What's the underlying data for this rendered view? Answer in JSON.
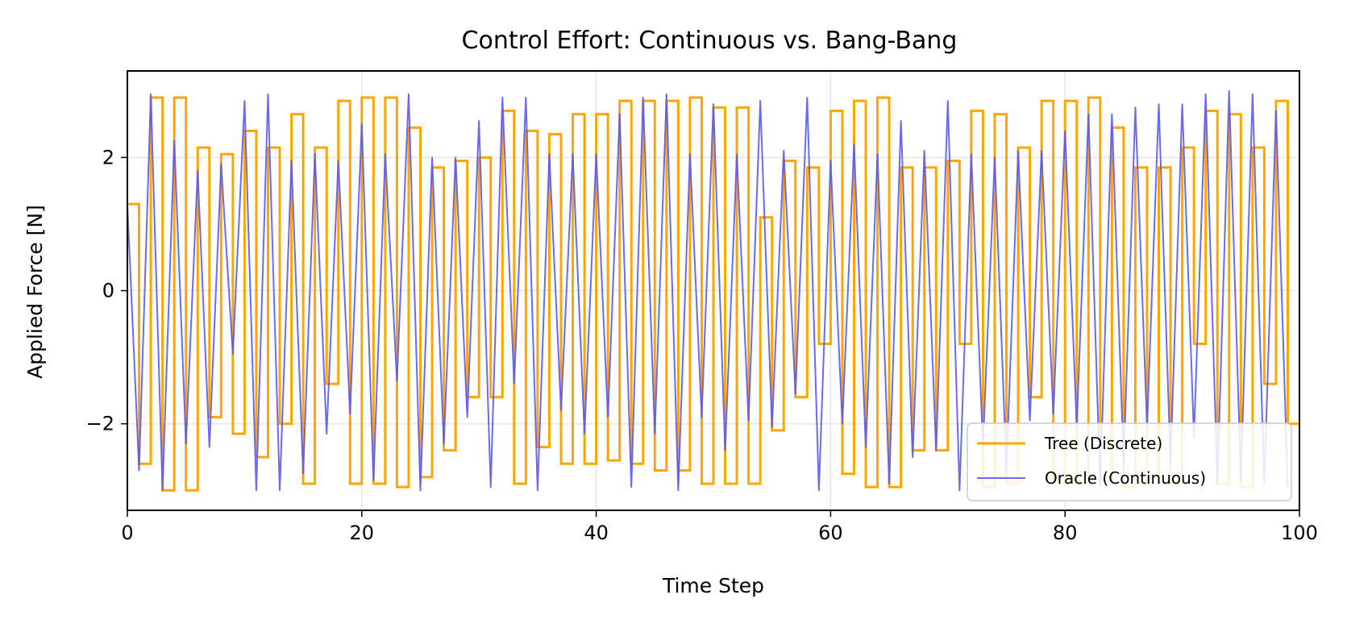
{
  "chart_data": {
    "type": "line",
    "title": "Control Effort: Continuous vs. Bang-Bang",
    "xlabel": "Time Step",
    "ylabel": "Applied Force [N]",
    "xlim": [
      0,
      100
    ],
    "ylim": [
      -3.3,
      3.3
    ],
    "xticks": [
      0,
      20,
      40,
      60,
      80,
      100
    ],
    "yticks": [
      2,
      0,
      -2
    ],
    "ytick_labels": [
      "2",
      "0",
      "−2"
    ],
    "grid": true,
    "legend_placement": "lower-right",
    "series": [
      {
        "name": "Tree (Discrete)",
        "style": "steps",
        "color": "#FFA500",
        "x": [
          0,
          1,
          2,
          3,
          4,
          5,
          6,
          7,
          8,
          9,
          10,
          11,
          12,
          13,
          14,
          15,
          16,
          17,
          18,
          19,
          20,
          21,
          22,
          23,
          24,
          25,
          26,
          27,
          28,
          29,
          30,
          31,
          32,
          33,
          34,
          35,
          36,
          37,
          38,
          39,
          40,
          41,
          42,
          43,
          44,
          45,
          46,
          47,
          48,
          49,
          50,
          51,
          52,
          53,
          54,
          55,
          56,
          57,
          58,
          59,
          60,
          61,
          62,
          63,
          64,
          65,
          66,
          67,
          68,
          69,
          70,
          71,
          72,
          73,
          74,
          75,
          76,
          77,
          78,
          79,
          80,
          81,
          82,
          83,
          84,
          85,
          86,
          87,
          88,
          89,
          90,
          91,
          92,
          93,
          94,
          95,
          96,
          97,
          98,
          99
        ],
        "values": [
          1.3,
          -2.6,
          2.9,
          -3.0,
          2.9,
          -3.0,
          2.15,
          -1.9,
          2.05,
          -2.15,
          2.4,
          -2.5,
          2.15,
          -2.0,
          2.65,
          -2.9,
          2.15,
          -1.4,
          2.85,
          -2.9,
          2.9,
          -2.9,
          2.9,
          -2.95,
          2.45,
          -2.8,
          1.85,
          -2.4,
          1.95,
          -1.6,
          2.0,
          -1.6,
          2.7,
          -2.9,
          2.4,
          -2.35,
          2.35,
          -2.6,
          2.65,
          -2.6,
          2.65,
          -2.55,
          2.85,
          -2.6,
          2.85,
          -2.7,
          2.85,
          -2.7,
          2.9,
          -2.9,
          2.75,
          -2.9,
          2.75,
          -2.9,
          1.1,
          -2.1,
          1.95,
          -1.6,
          1.85,
          -0.8,
          2.7,
          -2.75,
          2.85,
          -2.95,
          2.9,
          -2.95,
          1.85,
          -2.4,
          1.85,
          -2.4,
          1.95,
          -0.8,
          2.7,
          -2.95,
          2.65,
          -2.9,
          2.15,
          -1.6,
          2.85,
          -2.9,
          2.85,
          -2.9,
          2.9,
          -2.85,
          2.45,
          -2.95,
          1.85,
          -2.9,
          1.85,
          -2.9,
          2.15,
          -0.8,
          2.7,
          -2.9,
          2.65,
          -2.95,
          2.15,
          -1.4,
          2.85,
          -2.0
        ]
      },
      {
        "name": "Oracle (Continuous)",
        "style": "line",
        "color": "#5A5AF0",
        "x": [
          0,
          1,
          2,
          3,
          4,
          5,
          6,
          7,
          8,
          9,
          10,
          11,
          12,
          13,
          14,
          15,
          16,
          17,
          18,
          19,
          20,
          21,
          22,
          23,
          24,
          25,
          26,
          27,
          28,
          29,
          30,
          31,
          32,
          33,
          34,
          35,
          36,
          37,
          38,
          39,
          40,
          41,
          42,
          43,
          44,
          45,
          46,
          47,
          48,
          49,
          50,
          51,
          52,
          53,
          54,
          55,
          56,
          57,
          58,
          59,
          60,
          61,
          62,
          63,
          64,
          65,
          66,
          67,
          68,
          69,
          70,
          71,
          72,
          73,
          74,
          75,
          76,
          77,
          78,
          79,
          80,
          81,
          82,
          83,
          84,
          85,
          86,
          87,
          88,
          89,
          90,
          91,
          92,
          93,
          94,
          95,
          96,
          97,
          98,
          99
        ],
        "values": [
          1.3,
          -2.7,
          2.95,
          -3.0,
          2.25,
          -2.3,
          1.8,
          -2.35,
          1.9,
          -0.95,
          2.85,
          -3.0,
          2.95,
          -3.0,
          1.95,
          -2.75,
          2.05,
          -2.15,
          1.95,
          -1.85,
          2.5,
          -2.85,
          2.05,
          -1.35,
          2.95,
          -3.0,
          2.0,
          -2.3,
          2.0,
          -1.9,
          2.55,
          -2.95,
          2.9,
          -1.4,
          2.9,
          -3.0,
          2.05,
          -1.8,
          2.05,
          -2.15,
          2.05,
          -1.9,
          2.65,
          -2.95,
          2.9,
          -2.15,
          2.95,
          -3.0,
          2.05,
          -1.9,
          2.8,
          -2.4,
          2.05,
          -1.95,
          2.85,
          -2.05,
          2.1,
          -1.55,
          2.9,
          -3.0,
          1.95,
          -2.0,
          2.2,
          -2.35,
          2.05,
          -2.9,
          2.55,
          -2.5,
          2.1,
          -2.4,
          2.85,
          -3.0,
          2.05,
          -2.35,
          2.0,
          -2.7,
          2.1,
          -1.95,
          2.1,
          -1.85,
          2.4,
          -2.05,
          2.65,
          -2.95,
          2.65,
          -2.6,
          2.75,
          -2.05,
          2.8,
          -2.6,
          2.8,
          -2.2,
          2.95,
          -2.9,
          3.0,
          -2.85,
          2.95,
          -2.9,
          2.7,
          -2.95
        ]
      }
    ]
  }
}
